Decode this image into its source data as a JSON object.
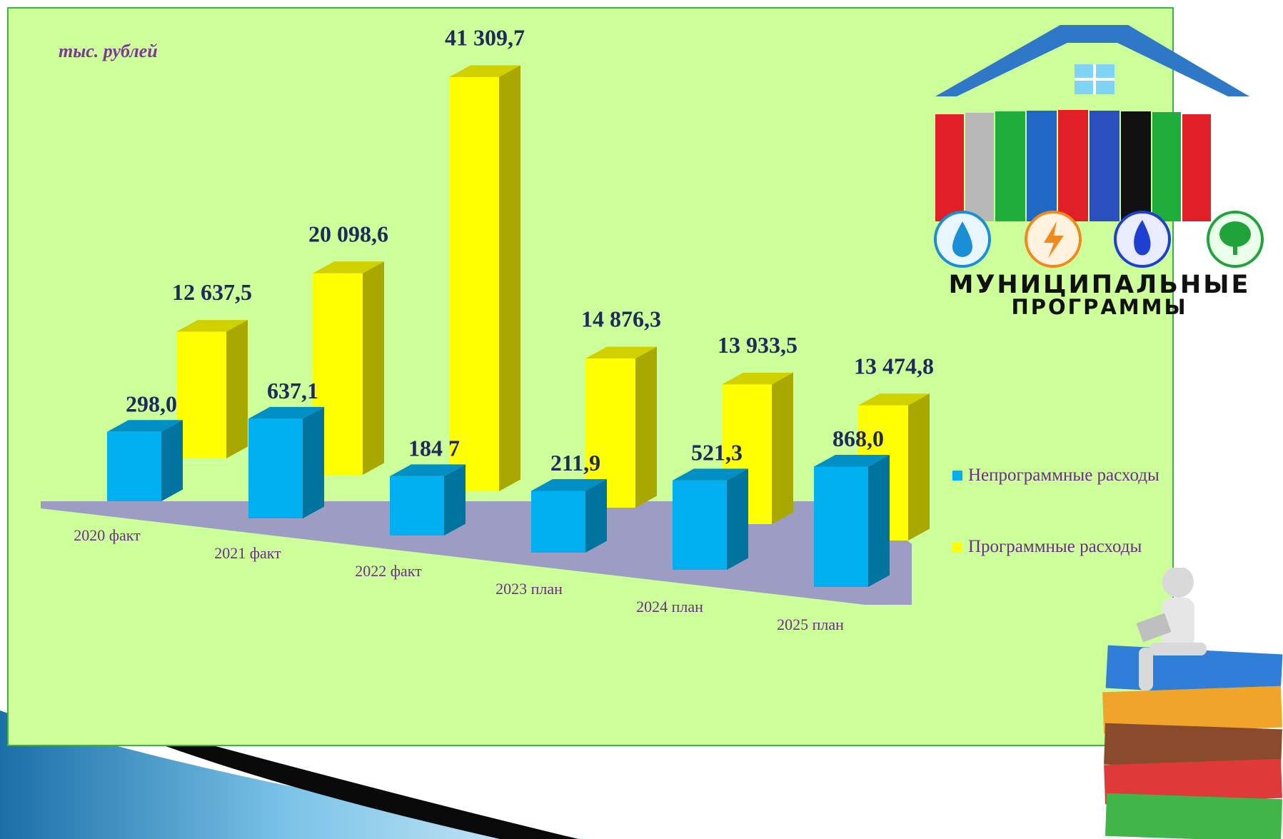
{
  "unit_label": "тыс. рублей",
  "logo": {
    "line1": "МУНИЦИПАЛЬНЫЕ",
    "line2": "ПРОГРАММЫ"
  },
  "colors": {
    "panel_bg": "#ccff99",
    "panel_border": "#3cb04a",
    "non_program": "#00b0f0",
    "program": "#ffff00",
    "floor": "#9d9dc4",
    "value_text": "#1f2a5c",
    "label_text": "#6b2f8a"
  },
  "chart_data": {
    "type": "bar",
    "categories": [
      "2020 факт",
      "2021 факт",
      "2022 факт",
      "2023 план",
      "2024 план",
      "2025 план"
    ],
    "series": [
      {
        "name": "Непрограммные расходы",
        "values": [
          298.0,
          637.1,
          184.7,
          211.9,
          521.3,
          868.0
        ],
        "labels": [
          "298,0",
          "637,1",
          "184 7",
          "211,9",
          "521,3",
          "868,0"
        ]
      },
      {
        "name": "Программные расходы",
        "values": [
          12637.5,
          20098.6,
          41309.7,
          14876.3,
          13933.5,
          13474.8
        ],
        "labels": [
          "12 637,5",
          "20 098,6",
          "41 309,7",
          "14 876,3",
          "13 933,5",
          "13 474,8"
        ]
      }
    ],
    "legend_position": "right",
    "grid": false
  }
}
